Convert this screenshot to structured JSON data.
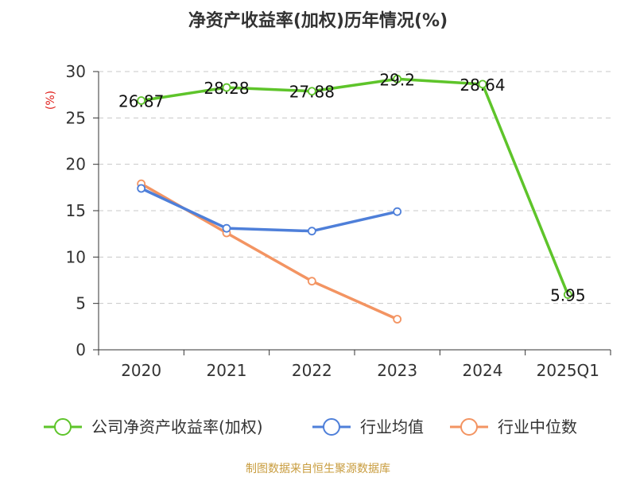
{
  "chart_data": {
    "type": "line",
    "title": "净资产收益率(加权)历年情况(%)",
    "ylabel": "(%)",
    "categories": [
      "2020",
      "2021",
      "2022",
      "2023",
      "2024",
      "2025Q1"
    ],
    "ylim": [
      0,
      30
    ],
    "yticks": [
      0,
      5,
      10,
      15,
      20,
      25,
      30
    ],
    "grid": true,
    "legend_position": "bottom",
    "series": [
      {
        "name": "公司净资产收益率(加权)",
        "color": "#5ec42a",
        "values": [
          26.87,
          28.28,
          27.88,
          29.2,
          28.64,
          5.95
        ],
        "labels": [
          "26.87",
          "28.28",
          "27.88",
          "29.2",
          "28.64",
          "5.95"
        ]
      },
      {
        "name": "行业均值",
        "color": "#4e7fd9",
        "values": [
          17.4,
          13.1,
          12.8,
          14.9,
          null,
          null
        ]
      },
      {
        "name": "行业中位数",
        "color": "#f39462",
        "values": [
          17.9,
          12.6,
          7.4,
          3.3,
          null,
          null
        ]
      }
    ]
  },
  "source": "制图数据来自恒生聚源数据库"
}
